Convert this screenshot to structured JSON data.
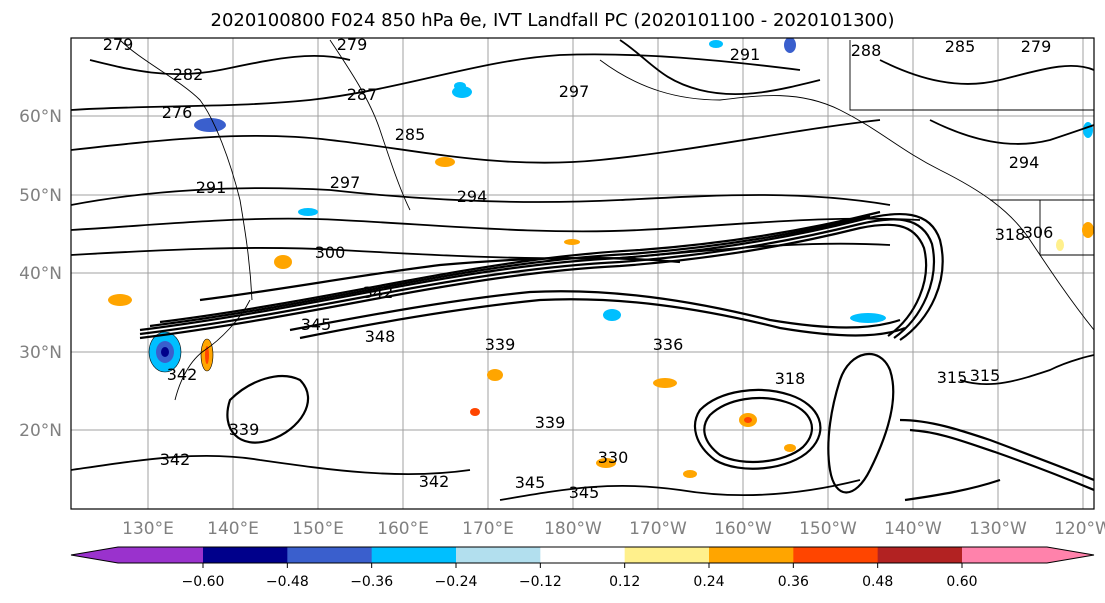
{
  "title": "2020100800 F024 850 hPa θe, IVT Landfall PC (2020101100 - 2020101300)",
  "map": {
    "lat_labels": [
      "60°N",
      "50°N",
      "40°N",
      "30°N",
      "20°N"
    ],
    "lon_labels": [
      "130°E",
      "140°E",
      "150°E",
      "160°E",
      "170°E",
      "180°W",
      "170°W",
      "160°W",
      "150°W",
      "140°W",
      "130°W",
      "120°W"
    ],
    "contour_labels": [
      "279",
      "282",
      "279",
      "288",
      "291",
      "297",
      "287",
      "285",
      "285",
      "279",
      "276",
      "294",
      "291",
      "297",
      "294",
      "300",
      "306",
      "318",
      "342",
      "345",
      "348",
      "336",
      "339",
      "315",
      "342",
      "339",
      "345",
      "342",
      "330",
      "342",
      "345",
      "339",
      "318",
      "315"
    ]
  },
  "colorbar": {
    "colors": [
      "#9a32cd",
      "#00008b",
      "#3a5fcd",
      "#00bfff",
      "#b2dfee",
      "#ffffff",
      "#fff08c",
      "#ffa500",
      "#ff4500",
      "#b22222",
      "#ff82ab"
    ],
    "ticks": [
      "−0.60",
      "−0.48",
      "−0.36",
      "−0.24",
      "−0.12",
      "0.12",
      "0.24",
      "0.36",
      "0.48",
      "0.60"
    ]
  }
}
